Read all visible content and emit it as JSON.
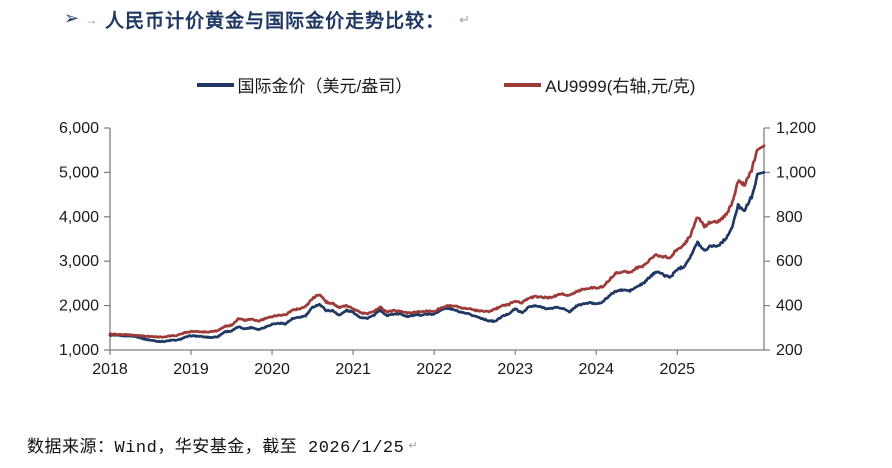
{
  "title": {
    "bullet": "➢",
    "tab_mark": "→",
    "text": "人民币计价黄金与国际金价走势比较：",
    "return_mark": "↵"
  },
  "legend": [
    {
      "label": "国际金价（美元/盎司）",
      "color": "#1f3864"
    },
    {
      "label": "AU9999(右轴,元/克)",
      "color": "#9e3b38"
    }
  ],
  "footer": {
    "text": "数据来源：Wind，华安基金，截至 2026/1/25",
    "return_mark": "↵"
  },
  "colors": {
    "title_navy": "#1f3864",
    "line_blue": "#1f3864",
    "line_red": "#9e3b38",
    "axis_line": "#7f7f7f",
    "axis_text": "#1a1a1a"
  },
  "chart_data": {
    "type": "line",
    "title": "人民币计价黄金与国际金价走势比较",
    "grid": false,
    "legend_position": "top",
    "x_unit": "monthly points from 2018-01 to 2026-01",
    "x_min_year": 2018,
    "x_max_year": 2026.07,
    "x_tick_labels": [
      "2018",
      "2019",
      "2020",
      "2021",
      "2022",
      "2023",
      "2024",
      "2025"
    ],
    "left_axis": {
      "label": "国际金价（美元/盎司）",
      "min": 1000,
      "max": 6000,
      "tick_labels": [
        "1,000",
        "2,000",
        "3,000",
        "4,000",
        "5,000",
        "6,000"
      ]
    },
    "right_axis": {
      "label": "AU9999(元/克)",
      "min": 200,
      "max": 1200,
      "tick_labels": [
        "200",
        "400",
        "600",
        "800",
        "1,000",
        "1,200"
      ]
    },
    "series": [
      {
        "name": "国际金价（美元/盎司）",
        "axis": "left",
        "color": "#1f3864",
        "values": [
          1335,
          1325,
          1322,
          1318,
          1300,
          1252,
          1222,
          1196,
          1192,
          1218,
          1222,
          1280,
          1322,
          1312,
          1293,
          1282,
          1303,
          1412,
          1425,
          1522,
          1478,
          1508,
          1462,
          1518,
          1582,
          1602,
          1592,
          1702,
          1732,
          1772,
          1962,
          2032,
          1892,
          1882,
          1782,
          1892,
          1852,
          1742,
          1712,
          1772,
          1902,
          1772,
          1812,
          1812,
          1758,
          1782,
          1792,
          1806,
          1802,
          1912,
          1942,
          1902,
          1842,
          1812,
          1766,
          1716,
          1662,
          1642,
          1752,
          1814,
          1930,
          1832,
          1972,
          1992,
          1962,
          1922,
          1962,
          1942,
          1852,
          1986,
          2036,
          2062,
          2042,
          2086,
          2232,
          2332,
          2352,
          2332,
          2422,
          2502,
          2652,
          2782,
          2682,
          2642,
          2822,
          2882,
          3122,
          3422,
          3242,
          3352,
          3342,
          3482,
          3702,
          4252,
          4152,
          4452,
          5000
        ]
      },
      {
        "name": "AU9999(右轴,元/克)",
        "axis": "right",
        "color": "#9e3b38",
        "values": [
          272,
          270,
          269,
          268,
          266,
          263,
          261,
          259,
          258,
          264,
          266,
          278,
          284,
          283,
          281,
          283,
          287,
          306,
          312,
          341,
          334,
          338,
          330,
          341,
          351,
          357,
          359,
          379,
          386,
          396,
          433,
          451,
          416,
          409,
          391,
          399,
          387,
          369,
          363,
          373,
          393,
          371,
          377,
          375,
          367,
          371,
          373,
          375,
          373,
          391,
          399,
          399,
          389,
          387,
          379,
          375,
          373,
          383,
          399,
          405,
          421,
          413,
          433,
          441,
          437,
          435,
          445,
          453,
          443,
          463,
          473,
          479,
          481,
          485,
          519,
          549,
          553,
          551,
          569,
          579,
          609,
          629,
          619,
          617,
          656,
          673,
          719,
          800,
          756,
          779,
          777,
          801,
          851,
          962,
          946,
          1012,
          1120
        ]
      }
    ]
  }
}
